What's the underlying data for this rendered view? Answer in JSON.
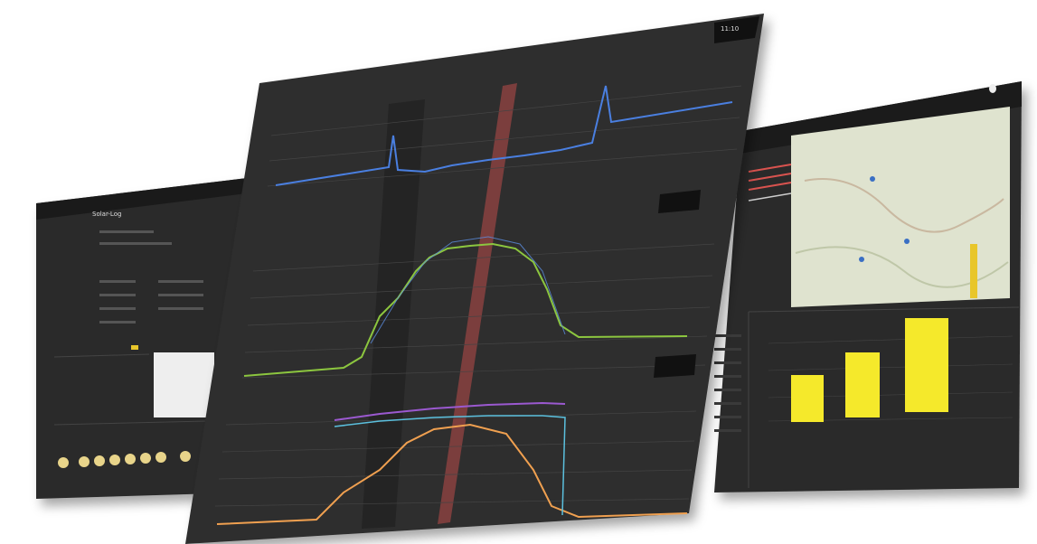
{
  "brand": "Solar-Log",
  "tooltip": {
    "time": "11:10"
  }
}
